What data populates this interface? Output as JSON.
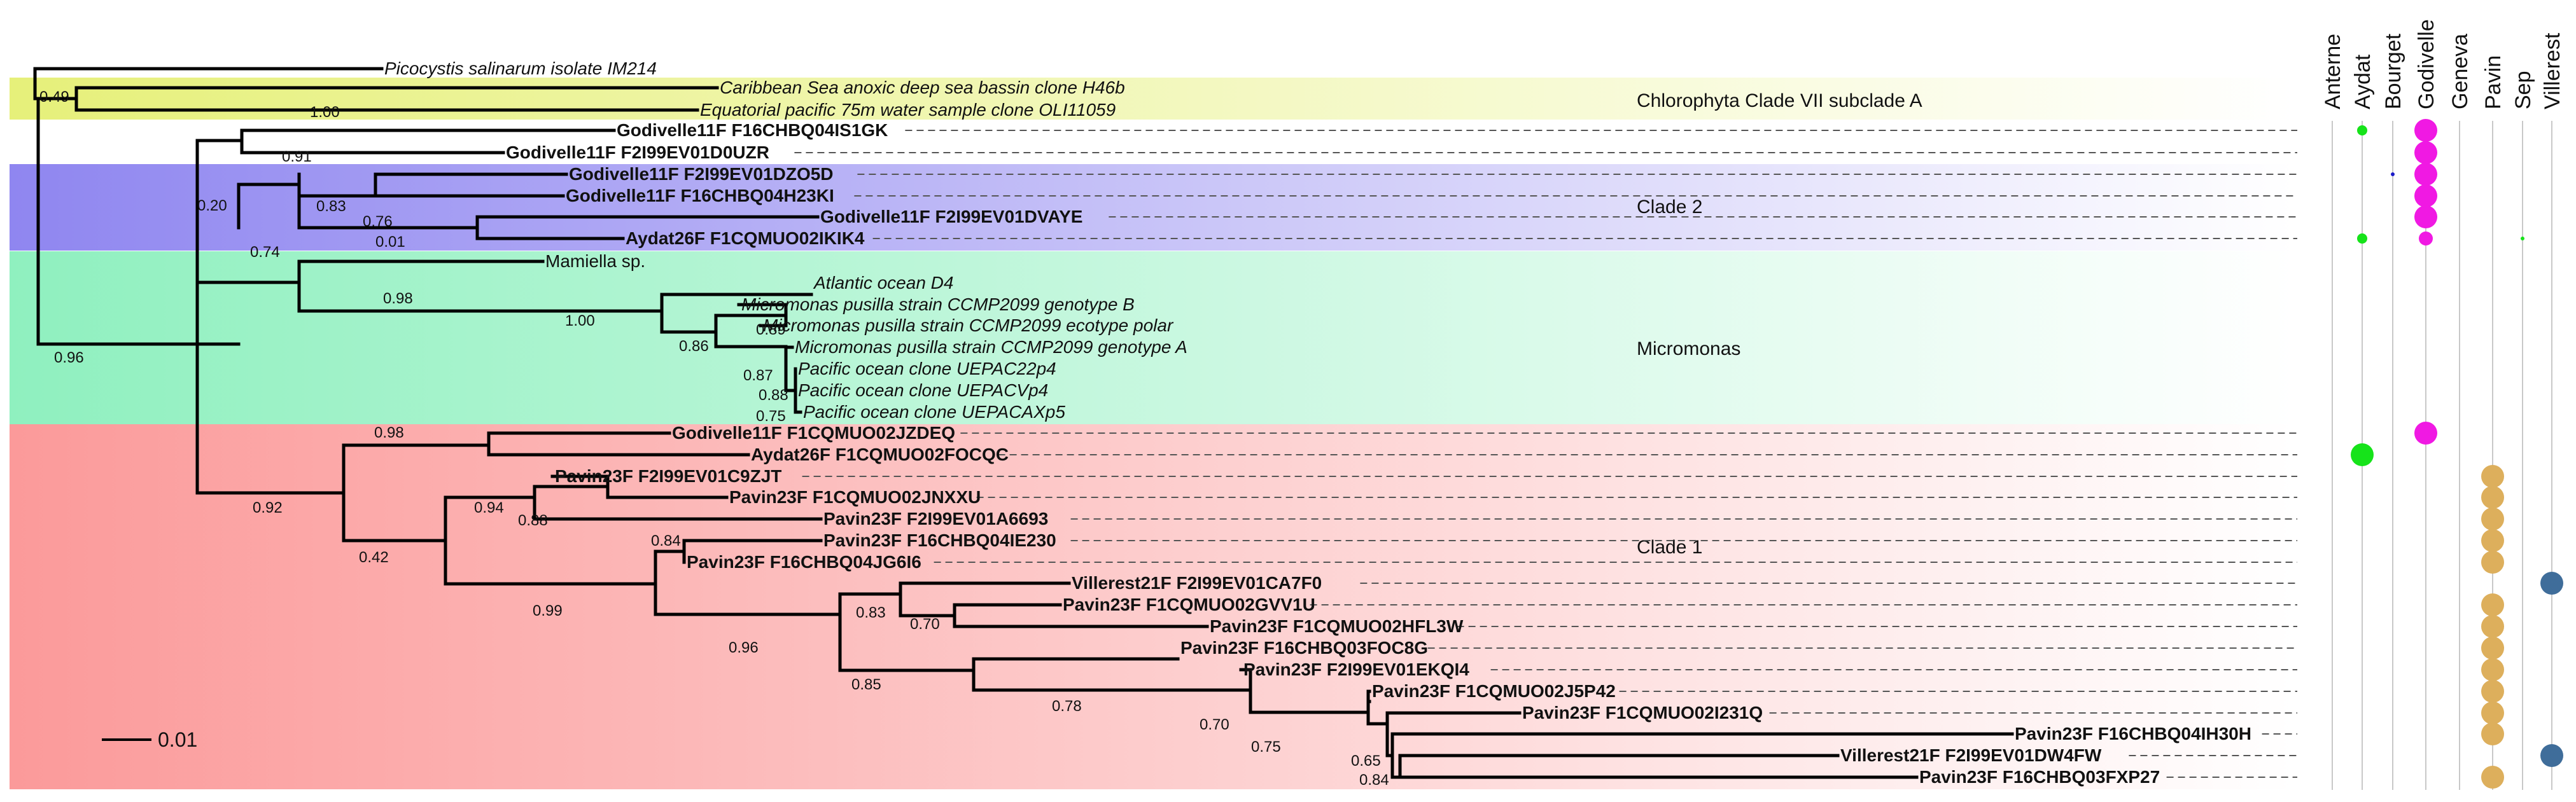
{
  "colors": {
    "chlorophyta": "#eef5a3",
    "clade2": "#a7a0f0",
    "micromonas": "#a9f4cf",
    "clade1": "#fba3a3",
    "aydat": "#16e31a",
    "godivelle": "#f019e3",
    "bourget": "#1a1ac8",
    "sep": "#16e31a",
    "pavin": "#ddaf5c",
    "villerest": "#3f6d9a"
  },
  "clade_labels": {
    "chlorophyta": "Chlorophyta Clade VII subclade A",
    "clade2": "Clade 2",
    "micromonas": "Micromonas",
    "clade1": "Clade 1"
  },
  "lakes": [
    "Anterne",
    "Aydat",
    "Bourget",
    "Godivelle",
    "Geneva",
    "Pavin",
    "Sep",
    "Villerest"
  ],
  "scale_bar": "0.01",
  "tips": [
    {
      "label": "Picocystis salinarum isolate IM214",
      "style": "italic"
    },
    {
      "label": "Caribbean Sea anoxic deep sea bassin clone H46b",
      "style": "italic"
    },
    {
      "label": "Equatorial pacific 75m water sample clone OLI11059",
      "style": "italic"
    },
    {
      "label": "Godivelle11F F16CHBQ04IS1GK",
      "style": "bold"
    },
    {
      "label": "Godivelle11F F2I99EV01D0UZR",
      "style": "bold"
    },
    {
      "label": "Godivelle11F F2I99EV01DZO5D",
      "style": "bold"
    },
    {
      "label": "Godivelle11F F16CHBQ04H23KI",
      "style": "bold"
    },
    {
      "label": "Godivelle11F F2I99EV01DVAYE",
      "style": "bold"
    },
    {
      "label": "Aydat26F F1CQMUO02IKIK4",
      "style": "bold"
    },
    {
      "label": "Mamiella sp.",
      "style": "normal"
    },
    {
      "label": "Atlantic ocean D4",
      "style": "italic"
    },
    {
      "label": "Micromonas pusilla strain CCMP2099 genotype B",
      "style": "italic"
    },
    {
      "label": "Micromonas pusilla strain CCMP2099 ecotype polar",
      "style": "italic"
    },
    {
      "label": "Micromonas pusilla strain CCMP2099 genotype A",
      "style": "italic"
    },
    {
      "label": "Pacific ocean clone UEPAC22p4",
      "style": "italic"
    },
    {
      "label": "Pacific ocean clone UEPACVp4",
      "style": "italic"
    },
    {
      "label": "Pacific ocean clone UEPACAXp5",
      "style": "italic"
    },
    {
      "label": "Godivelle11F F1CQMUO02JZDEQ",
      "style": "bold"
    },
    {
      "label": "Aydat26F F1CQMUO02FOCQC",
      "style": "bold"
    },
    {
      "label": "Pavin23F F2I99EV01C9ZJT",
      "style": "bold"
    },
    {
      "label": "Pavin23F F1CQMUO02JNXXU",
      "style": "bold"
    },
    {
      "label": "Pavin23F F2I99EV01A6693",
      "style": "bold"
    },
    {
      "label": "Pavin23F F16CHBQ04IE230",
      "style": "bold"
    },
    {
      "label": "Pavin23F F16CHBQ04JG6I6",
      "style": "bold"
    },
    {
      "label": "Villerest21F F2I99EV01CA7F0",
      "style": "bold"
    },
    {
      "label": "Pavin23F F1CQMUO02GVV1U",
      "style": "bold"
    },
    {
      "label": "Pavin23F F1CQMUO02HFL3W",
      "style": "bold"
    },
    {
      "label": "Pavin23F F16CHBQ03FOC8G",
      "style": "bold"
    },
    {
      "label": "Pavin23F F2I99EV01EKQI4",
      "style": "bold"
    },
    {
      "label": "Pavin23F F1CQMUO02J5P42",
      "style": "bold"
    },
    {
      "label": "Pavin23F F1CQMUO02I231Q",
      "style": "bold"
    },
    {
      "label": "Pavin23F F16CHBQ04IH30H",
      "style": "bold"
    },
    {
      "label": "Villerest21F F2I99EV01DW4FW",
      "style": "bold"
    },
    {
      "label": "Pavin23F F16CHBQ03FXP27",
      "style": "bold"
    }
  ],
  "support_values": [
    "0.49",
    "1.00",
    "0.91",
    "0.20",
    "0.83",
    "0.76",
    "0.01",
    "0.74",
    "0.98",
    "1.00",
    "0.86",
    "0.89",
    "0.87",
    "0.88",
    "0.75",
    "0.96",
    "0.98",
    "0.92",
    "0.94",
    "0.88",
    "0.84",
    "0.42",
    "0.99",
    "0.83",
    "0.70",
    "0.96",
    "0.85",
    "0.78",
    "0.70",
    "0.75",
    "0.65",
    "0.84"
  ],
  "occurrence": [
    {
      "tip": "Godivelle11F F16CHBQ04IS1GK",
      "lake": "Aydat",
      "size": "small"
    },
    {
      "tip": "Godivelle11F F16CHBQ04IS1GK",
      "lake": "Godivelle",
      "size": "large"
    },
    {
      "tip": "Godivelle11F F2I99EV01D0UZR",
      "lake": "Godivelle",
      "size": "large"
    },
    {
      "tip": "Godivelle11F F2I99EV01DZO5D",
      "lake": "Bourget",
      "size": "tiny"
    },
    {
      "tip": "Godivelle11F F2I99EV01DZO5D",
      "lake": "Godivelle",
      "size": "large"
    },
    {
      "tip": "Godivelle11F F16CHBQ04H23KI",
      "lake": "Godivelle",
      "size": "large"
    },
    {
      "tip": "Godivelle11F F2I99EV01DVAYE",
      "lake": "Godivelle",
      "size": "large"
    },
    {
      "tip": "Aydat26F F1CQMUO02IKIK4",
      "lake": "Aydat",
      "size": "small"
    },
    {
      "tip": "Aydat26F F1CQMUO02IKIK4",
      "lake": "Godivelle",
      "size": "medium"
    },
    {
      "tip": "Aydat26F F1CQMUO02IKIK4",
      "lake": "Sep",
      "size": "tiny"
    },
    {
      "tip": "Godivelle11F F1CQMUO02JZDEQ",
      "lake": "Godivelle",
      "size": "large"
    },
    {
      "tip": "Aydat26F F1CQMUO02FOCQC",
      "lake": "Aydat",
      "size": "large"
    },
    {
      "tip": "Pavin23F F2I99EV01C9ZJT",
      "lake": "Pavin",
      "size": "large"
    },
    {
      "tip": "Pavin23F F1CQMUO02JNXXU",
      "lake": "Pavin",
      "size": "large"
    },
    {
      "tip": "Pavin23F F2I99EV01A6693",
      "lake": "Pavin",
      "size": "large"
    },
    {
      "tip": "Pavin23F F16CHBQ04IE230",
      "lake": "Pavin",
      "size": "large"
    },
    {
      "tip": "Pavin23F F16CHBQ04JG6I6",
      "lake": "Pavin",
      "size": "large"
    },
    {
      "tip": "Villerest21F F2I99EV01CA7F0",
      "lake": "Villerest",
      "size": "large"
    },
    {
      "tip": "Pavin23F F1CQMUO02GVV1U",
      "lake": "Pavin",
      "size": "large"
    },
    {
      "tip": "Pavin23F F1CQMUO02HFL3W",
      "lake": "Pavin",
      "size": "large"
    },
    {
      "tip": "Pavin23F F16CHBQ03FOC8G",
      "lake": "Pavin",
      "size": "large"
    },
    {
      "tip": "Pavin23F F2I99EV01EKQI4",
      "lake": "Pavin",
      "size": "large"
    },
    {
      "tip": "Pavin23F F1CQMUO02J5P42",
      "lake": "Pavin",
      "size": "large"
    },
    {
      "tip": "Pavin23F F1CQMUO02I231Q",
      "lake": "Pavin",
      "size": "large"
    },
    {
      "tip": "Pavin23F F16CHBQ04IH30H",
      "lake": "Pavin",
      "size": "large"
    },
    {
      "tip": "Villerest21F F2I99EV01DW4FW",
      "lake": "Villerest",
      "size": "large"
    },
    {
      "tip": "Pavin23F F16CHBQ03FXP27",
      "lake": "Pavin",
      "size": "large"
    }
  ]
}
